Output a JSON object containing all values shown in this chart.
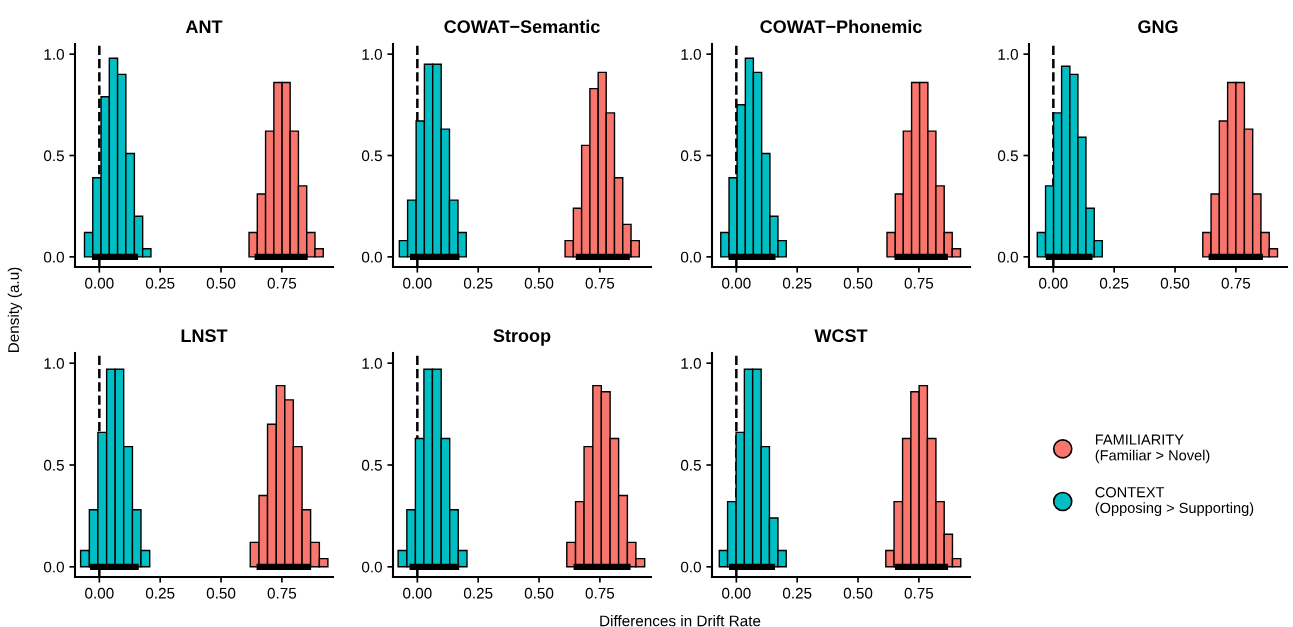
{
  "chart_data": [
    {
      "type": "histogram",
      "title": "ANT",
      "ylabel": "Density (a.u)",
      "xlim": [
        -0.1,
        0.96
      ],
      "ylim": [
        -0.05,
        1.05
      ],
      "xticks": [
        {
          "value": 0,
          "label": "0.00"
        },
        {
          "value": 0.25,
          "label": "0.25"
        },
        {
          "value": 0.5,
          "label": "0.50"
        },
        {
          "value": 0.75,
          "label": "0.75"
        }
      ],
      "yticks": [
        {
          "value": 0,
          "label": "0.0"
        },
        {
          "value": 0.5,
          "label": "0.5"
        },
        {
          "value": 1,
          "label": "1.0"
        }
      ],
      "ref_lines": [
        {
          "axis": "x",
          "value": 0,
          "color": "#000000",
          "line_style": "dashed"
        }
      ],
      "series": [
        {
          "color": "#f8766d",
          "bins": [
            0.615,
            0.649,
            0.683,
            0.717,
            0.751,
            0.784,
            0.818,
            0.852,
            0.886,
            0.92
          ],
          "values": [
            0.12,
            0.31,
            0.62,
            0.86,
            0.86,
            0.62,
            0.35,
            0.12,
            0.04
          ]
        },
        {
          "color": "#00bfc4",
          "bins": [
            -0.061,
            -0.027,
            0.007,
            0.041,
            0.075,
            0.109,
            0.144,
            0.178,
            0.212
          ],
          "values": [
            0.12,
            0.39,
            0.79,
            0.98,
            0.9,
            0.51,
            0.2,
            0.04
          ]
        },
        {
          "type": "line",
          "color": "#000000",
          "x": [
            0.638,
            0.856
          ],
          "values": [
            0,
            0
          ]
        },
        {
          "type": "line",
          "color": "#000000",
          "x": [
            -0.03,
            0.159
          ],
          "values": [
            0,
            0
          ]
        }
      ]
    },
    {
      "type": "histogram",
      "title": "COWAT−Semantic",
      "xlim": [
        -0.1,
        0.96
      ],
      "ylim": [
        -0.05,
        1.05
      ],
      "xticks": [
        {
          "value": 0,
          "label": "0.00"
        },
        {
          "value": 0.25,
          "label": "0.25"
        },
        {
          "value": 0.5,
          "label": "0.50"
        },
        {
          "value": 0.75,
          "label": "0.75"
        }
      ],
      "yticks": [
        {
          "value": 0,
          "label": "0.0"
        },
        {
          "value": 0.5,
          "label": "0.5"
        },
        {
          "value": 1,
          "label": "1.0"
        }
      ],
      "ref_lines": [
        {
          "axis": "x",
          "value": 0,
          "color": "#000000",
          "line_style": "dashed"
        }
      ],
      "series": [
        {
          "color": "#f8766d",
          "bins": [
            0.607,
            0.641,
            0.675,
            0.709,
            0.743,
            0.776,
            0.81,
            0.844,
            0.878,
            0.912
          ],
          "values": [
            0.08,
            0.24,
            0.55,
            0.83,
            0.91,
            0.71,
            0.39,
            0.16,
            0.08
          ]
        },
        {
          "color": "#00bfc4",
          "bins": [
            -0.074,
            -0.04,
            -0.005,
            0.029,
            0.063,
            0.098,
            0.132,
            0.167,
            0.201
          ],
          "values": [
            0.08,
            0.28,
            0.67,
            0.95,
            0.95,
            0.63,
            0.28,
            0.12
          ]
        },
        {
          "type": "line",
          "color": "#000000",
          "x": [
            0.651,
            0.873
          ],
          "values": [
            0,
            0
          ]
        },
        {
          "type": "line",
          "color": "#000000",
          "x": [
            -0.03,
            0.173
          ],
          "values": [
            0,
            0
          ]
        }
      ]
    },
    {
      "type": "histogram",
      "title": "COWAT−Phonemic",
      "xlim": [
        -0.1,
        0.96
      ],
      "ylim": [
        -0.05,
        1.05
      ],
      "xticks": [
        {
          "value": 0,
          "label": "0.00"
        },
        {
          "value": 0.25,
          "label": "0.25"
        },
        {
          "value": 0.5,
          "label": "0.50"
        },
        {
          "value": 0.75,
          "label": "0.75"
        }
      ],
      "yticks": [
        {
          "value": 0,
          "label": "0.0"
        },
        {
          "value": 0.5,
          "label": "0.5"
        },
        {
          "value": 1,
          "label": "1.0"
        }
      ],
      "ref_lines": [
        {
          "axis": "x",
          "value": 0,
          "color": "#000000",
          "line_style": "dashed"
        }
      ],
      "series": [
        {
          "color": "#f8766d",
          "bins": [
            0.619,
            0.653,
            0.686,
            0.72,
            0.753,
            0.787,
            0.82,
            0.854,
            0.887,
            0.921
          ],
          "values": [
            0.12,
            0.31,
            0.62,
            0.86,
            0.86,
            0.62,
            0.35,
            0.12,
            0.04
          ]
        },
        {
          "color": "#00bfc4",
          "bins": [
            -0.064,
            -0.03,
            0.003,
            0.037,
            0.07,
            0.104,
            0.138,
            0.171,
            0.205
          ],
          "values": [
            0.12,
            0.39,
            0.75,
            0.98,
            0.91,
            0.51,
            0.2,
            0.08
          ]
        },
        {
          "type": "line",
          "color": "#000000",
          "x": [
            0.65,
            0.869
          ],
          "values": [
            0,
            0
          ]
        },
        {
          "type": "line",
          "color": "#000000",
          "x": [
            -0.032,
            0.161
          ],
          "values": [
            0,
            0
          ]
        }
      ]
    },
    {
      "type": "histogram",
      "title": "GNG",
      "xlim": [
        -0.1,
        0.96
      ],
      "ylim": [
        -0.05,
        1.05
      ],
      "xticks": [
        {
          "value": 0,
          "label": "0.00"
        },
        {
          "value": 0.25,
          "label": "0.25"
        },
        {
          "value": 0.5,
          "label": "0.50"
        },
        {
          "value": 0.75,
          "label": "0.75"
        }
      ],
      "yticks": [
        {
          "value": 0,
          "label": "0.0"
        },
        {
          "value": 0.5,
          "label": "0.5"
        },
        {
          "value": 1,
          "label": "1.0"
        }
      ],
      "ref_lines": [
        {
          "axis": "x",
          "value": 0,
          "color": "#000000",
          "line_style": "dashed"
        }
      ],
      "series": [
        {
          "color": "#f8766d",
          "bins": [
            0.614,
            0.648,
            0.682,
            0.716,
            0.75,
            0.785,
            0.819,
            0.853,
            0.887,
            0.921
          ],
          "values": [
            0.12,
            0.31,
            0.67,
            0.86,
            0.86,
            0.63,
            0.31,
            0.12,
            0.04
          ]
        },
        {
          "color": "#00bfc4",
          "bins": [
            -0.066,
            -0.032,
            0.001,
            0.034,
            0.068,
            0.101,
            0.134,
            0.168,
            0.201
          ],
          "values": [
            0.12,
            0.35,
            0.71,
            0.94,
            0.9,
            0.59,
            0.24,
            0.08
          ]
        },
        {
          "type": "line",
          "color": "#000000",
          "x": [
            0.638,
            0.861
          ],
          "values": [
            0,
            0
          ]
        },
        {
          "type": "line",
          "color": "#000000",
          "x": [
            -0.031,
            0.161
          ],
          "values": [
            0,
            0
          ]
        }
      ]
    },
    {
      "type": "histogram",
      "title": "LNST",
      "xlim": [
        -0.1,
        0.96
      ],
      "ylim": [
        -0.05,
        1.05
      ],
      "xticks": [
        {
          "value": 0,
          "label": "0.00"
        },
        {
          "value": 0.25,
          "label": "0.25"
        },
        {
          "value": 0.5,
          "label": "0.50"
        },
        {
          "value": 0.75,
          "label": "0.75"
        }
      ],
      "yticks": [
        {
          "value": 0,
          "label": "0.0"
        },
        {
          "value": 0.5,
          "label": "0.5"
        },
        {
          "value": 1,
          "label": "1.0"
        }
      ],
      "ref_lines": [
        {
          "axis": "x",
          "value": 0,
          "color": "#000000",
          "line_style": "dashed"
        }
      ],
      "series": [
        {
          "color": "#f8766d",
          "bins": [
            0.62,
            0.656,
            0.691,
            0.727,
            0.762,
            0.797,
            0.833,
            0.868,
            0.904,
            0.939
          ],
          "values": [
            0.12,
            0.35,
            0.7,
            0.89,
            0.82,
            0.59,
            0.28,
            0.12,
            0.04
          ]
        },
        {
          "color": "#00bfc4",
          "bins": [
            -0.077,
            -0.041,
            -0.006,
            0.03,
            0.065,
            0.1,
            0.136,
            0.171,
            0.207
          ],
          "values": [
            0.08,
            0.28,
            0.66,
            0.97,
            0.97,
            0.59,
            0.28,
            0.08
          ]
        },
        {
          "type": "line",
          "color": "#000000",
          "x": [
            0.646,
            0.87
          ],
          "values": [
            0,
            0
          ]
        },
        {
          "type": "line",
          "color": "#000000",
          "x": [
            -0.038,
            0.162
          ],
          "values": [
            0,
            0
          ]
        }
      ]
    },
    {
      "type": "histogram",
      "title": "Stroop",
      "xlabel": "Differences in Drift Rate",
      "xlim": [
        -0.1,
        0.96
      ],
      "ylim": [
        -0.05,
        1.05
      ],
      "xticks": [
        {
          "value": 0,
          "label": "0.00"
        },
        {
          "value": 0.25,
          "label": "0.25"
        },
        {
          "value": 0.5,
          "label": "0.50"
        },
        {
          "value": 0.75,
          "label": "0.75"
        }
      ],
      "yticks": [
        {
          "value": 0,
          "label": "0.0"
        },
        {
          "value": 0.5,
          "label": "0.5"
        },
        {
          "value": 1,
          "label": "1.0"
        }
      ],
      "ref_lines": [
        {
          "axis": "x",
          "value": 0,
          "color": "#000000",
          "line_style": "dashed"
        }
      ],
      "series": [
        {
          "color": "#f8766d",
          "bins": [
            0.614,
            0.65,
            0.685,
            0.721,
            0.756,
            0.792,
            0.827,
            0.863,
            0.898,
            0.934
          ],
          "values": [
            0.12,
            0.32,
            0.59,
            0.89,
            0.86,
            0.63,
            0.35,
            0.12,
            0.04
          ]
        },
        {
          "color": "#00bfc4",
          "bins": [
            -0.079,
            -0.043,
            -0.008,
            0.027,
            0.062,
            0.098,
            0.133,
            0.168,
            0.204
          ],
          "values": [
            0.08,
            0.28,
            0.63,
            0.97,
            0.97,
            0.63,
            0.28,
            0.08
          ]
        },
        {
          "type": "line",
          "color": "#000000",
          "x": [
            0.642,
            0.876
          ],
          "values": [
            0,
            0
          ]
        },
        {
          "type": "line",
          "color": "#000000",
          "x": [
            -0.032,
            0.172
          ],
          "values": [
            0,
            0
          ]
        }
      ]
    },
    {
      "type": "histogram",
      "title": "WCST",
      "xlim": [
        -0.1,
        0.96
      ],
      "ylim": [
        -0.05,
        1.05
      ],
      "xticks": [
        {
          "value": 0,
          "label": "0.00"
        },
        {
          "value": 0.25,
          "label": "0.25"
        },
        {
          "value": 0.5,
          "label": "0.50"
        },
        {
          "value": 0.75,
          "label": "0.75"
        }
      ],
      "yticks": [
        {
          "value": 0,
          "label": "0.0"
        },
        {
          "value": 0.5,
          "label": "0.5"
        },
        {
          "value": 1,
          "label": "1.0"
        }
      ],
      "legend": "right",
      "ref_lines": [
        {
          "axis": "x",
          "value": 0,
          "color": "#000000",
          "line_style": "dashed"
        }
      ],
      "series": [
        {
          "name": "FAMILIARITY\n(Familiar > Novel)",
          "color": "#f8766d",
          "bins": [
            0.614,
            0.648,
            0.683,
            0.717,
            0.751,
            0.785,
            0.82,
            0.854,
            0.888,
            0.922
          ],
          "values": [
            0.08,
            0.32,
            0.63,
            0.86,
            0.89,
            0.63,
            0.32,
            0.16,
            0.04
          ]
        },
        {
          "name": "CONTEXT\n(Opposing > Supporting)",
          "color": "#00bfc4",
          "bins": [
            -0.07,
            -0.036,
            -0.001,
            0.033,
            0.067,
            0.102,
            0.136,
            0.171,
            0.205
          ],
          "values": [
            0.08,
            0.32,
            0.66,
            0.97,
            0.97,
            0.59,
            0.24,
            0.08
          ]
        },
        {
          "type": "line",
          "color": "#000000",
          "x": [
            0.652,
            0.87
          ],
          "values": [
            0,
            0
          ]
        },
        {
          "type": "line",
          "color": "#000000",
          "x": [
            -0.03,
            0.159
          ],
          "values": [
            0,
            0
          ]
        }
      ]
    }
  ]
}
